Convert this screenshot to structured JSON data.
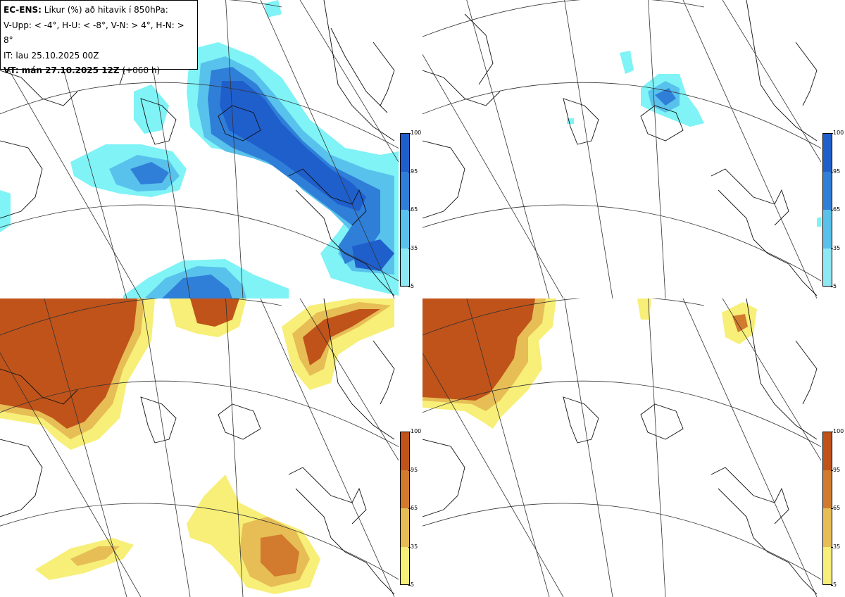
{
  "legend": {
    "title_bold": "EC-ENS:",
    "title_rest": "Líkur (%) að hitavik í 850hPa:",
    "thresholds": "V-Upp: < -4°, H-U: < -8°, V-N: > 4°, H-N: > 8°",
    "initial_time": "IT: lau 25.10.2025 00Z",
    "valid_bold": "VT: mán 27.10.2025 12Z",
    "valid_rest": "(+060 h)"
  },
  "colorbars": {
    "cold": {
      "ticks": [
        "100",
        "95",
        "65",
        "35",
        "5"
      ],
      "colors": [
        "#1f5fcc",
        "#2f7fd8",
        "#58c2ec",
        "#8ee8f4",
        "#7ff3f6"
      ]
    },
    "warm": {
      "ticks": [
        "100",
        "95",
        "65",
        "35",
        "5"
      ],
      "colors": [
        "#c0531a",
        "#d27a2e",
        "#e7bd55",
        "#f7ef78",
        "#fbf97e"
      ]
    }
  },
  "panels": [
    {
      "name": "cold-moderate",
      "probability_kind": "cold"
    },
    {
      "name": "cold-strong",
      "probability_kind": "cold"
    },
    {
      "name": "warm-moderate",
      "probability_kind": "warm"
    },
    {
      "name": "warm-strong",
      "probability_kind": "warm"
    }
  ]
}
